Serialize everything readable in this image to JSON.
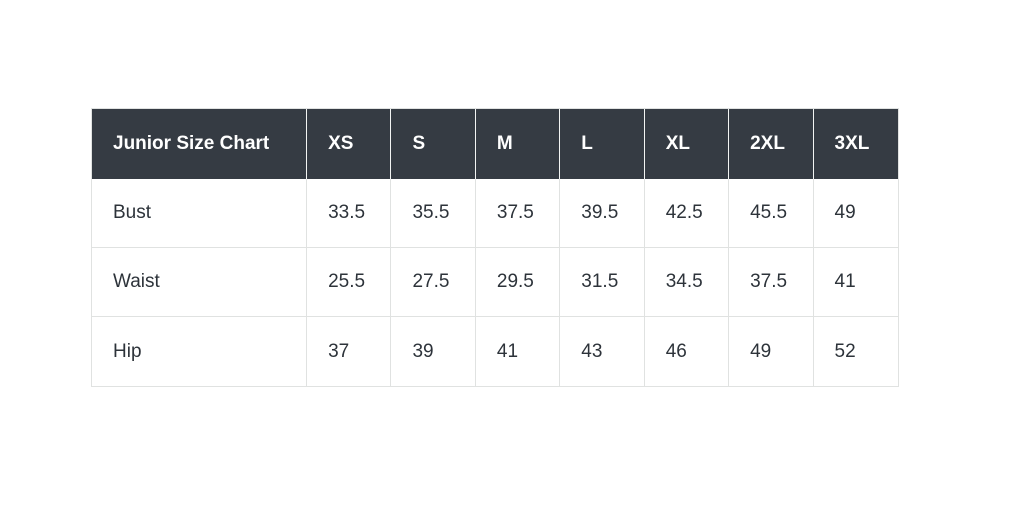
{
  "page": {
    "background": "#ffffff"
  },
  "table": {
    "title": "Junior Size Chart",
    "columns": [
      "XS",
      "S",
      "M",
      "L",
      "XL",
      "2XL",
      "3XL"
    ],
    "rows": [
      {
        "label": "Bust",
        "values": [
          "33.5",
          "35.5",
          "37.5",
          "39.5",
          "42.5",
          "45.5",
          "49"
        ]
      },
      {
        "label": "Waist",
        "values": [
          "25.5",
          "27.5",
          "29.5",
          "31.5",
          "34.5",
          "37.5",
          "41"
        ]
      },
      {
        "label": "Hip",
        "values": [
          "37",
          "39",
          "41",
          "43",
          "46",
          "49",
          "52"
        ]
      }
    ],
    "colors": {
      "header_bg": "#353b43",
      "header_text": "#ffffff",
      "header_divider": "#f2f4f3",
      "body_text": "#2d333a",
      "border": "#e0e2e1"
    }
  },
  "chart_data": {
    "type": "table",
    "title": "Junior Size Chart",
    "categories": [
      "XS",
      "S",
      "M",
      "L",
      "XL",
      "2XL",
      "3XL"
    ],
    "series": [
      {
        "name": "Bust",
        "values": [
          33.5,
          35.5,
          37.5,
          39.5,
          42.5,
          45.5,
          49
        ]
      },
      {
        "name": "Waist",
        "values": [
          25.5,
          27.5,
          29.5,
          31.5,
          34.5,
          37.5,
          41
        ]
      },
      {
        "name": "Hip",
        "values": [
          37,
          39,
          41,
          43,
          46,
          49,
          52
        ]
      }
    ],
    "layout": {
      "header_position": "top-row",
      "grid": true
    }
  }
}
